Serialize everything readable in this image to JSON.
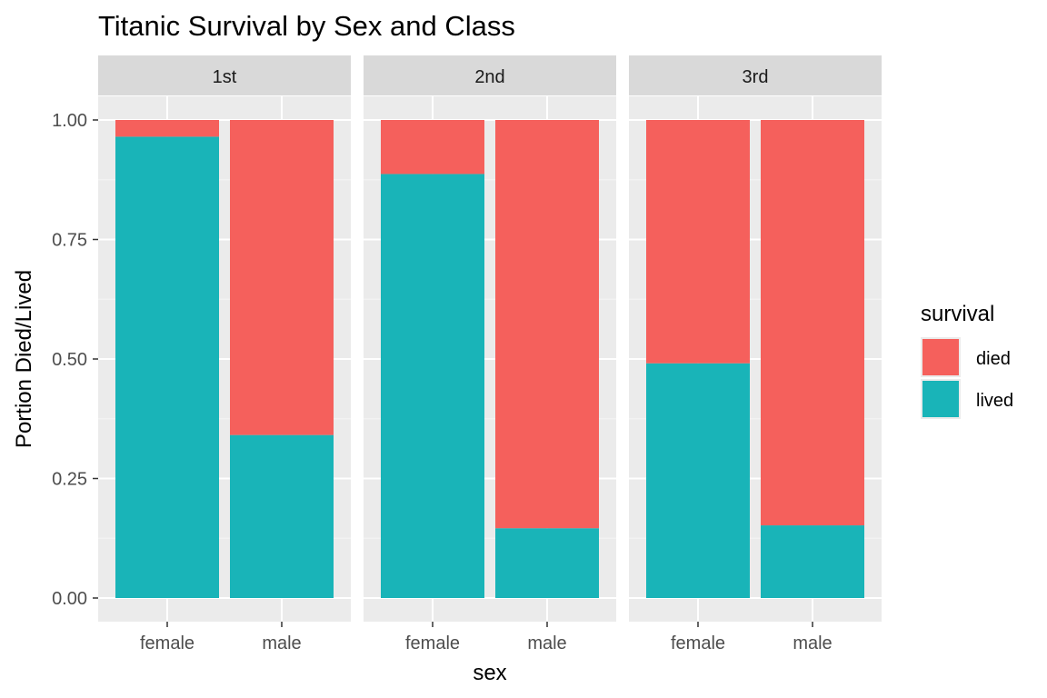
{
  "chart_data": {
    "type": "bar",
    "stacked": true,
    "title": "Titanic Survival by Sex and Class",
    "xlabel": "sex",
    "ylabel": "Portion Died/Lived",
    "ylim": [
      0,
      1.1
    ],
    "yticks": [
      "0.00",
      "0.25",
      "0.50",
      "0.75",
      "1.00"
    ],
    "ytick_values": [
      0,
      0.25,
      0.5,
      0.75,
      1.0
    ],
    "categories": [
      "female",
      "male"
    ],
    "facets": [
      {
        "label": "1st",
        "series": [
          {
            "name": "lived",
            "values": [
              0.965,
              0.341
            ]
          },
          {
            "name": "died",
            "values": [
              0.035,
              0.659
            ]
          }
        ]
      },
      {
        "label": "2nd",
        "series": [
          {
            "name": "lived",
            "values": [
              0.887,
              0.146
            ]
          },
          {
            "name": "died",
            "values": [
              0.113,
              0.854
            ]
          }
        ]
      },
      {
        "label": "3rd",
        "series": [
          {
            "name": "lived",
            "values": [
              0.491,
              0.152
            ]
          },
          {
            "name": "died",
            "values": [
              0.509,
              0.848
            ]
          }
        ]
      }
    ],
    "legend": {
      "title": "survival",
      "placement": "right",
      "entries": [
        {
          "name": "died",
          "color": "#F8766D"
        },
        {
          "name": "lived",
          "color": "#00BFC4"
        }
      ]
    },
    "colors": {
      "died": "#F5605C",
      "lived": "#19B4B8"
    },
    "grid": true
  }
}
